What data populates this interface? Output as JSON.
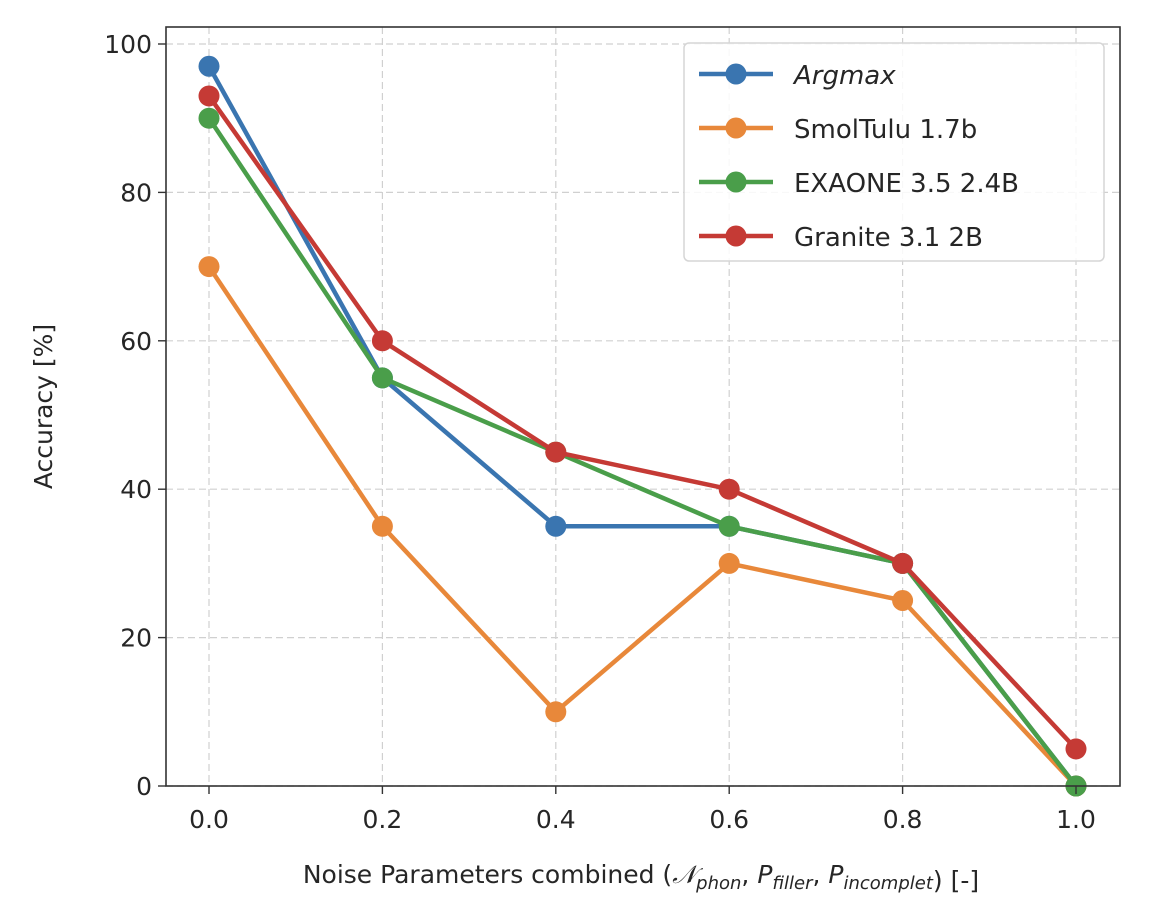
{
  "chart_data": {
    "type": "line",
    "title": "",
    "xlabel": {
      "prefix": "Noise Parameters combined (",
      "terms": [
        {
          "base": "𝒩",
          "sub": "phon"
        },
        {
          "base": "P",
          "sub": "filler"
        },
        {
          "base": "P",
          "sub": "incomplet"
        }
      ],
      "suffix": ") [-]",
      "full": "Noise Parameters combined (𝒩phon, Pfiller, Pincomplet) [-]"
    },
    "ylabel": "Accuracy [%]",
    "x": [
      0.0,
      0.2,
      0.4,
      0.6,
      0.8,
      1.0
    ],
    "xticks": [
      "0.0",
      "0.2",
      "0.4",
      "0.6",
      "0.8",
      "1.0"
    ],
    "yticks": [
      "0",
      "20",
      "40",
      "60",
      "80",
      "100"
    ],
    "ytick_values": [
      0,
      20,
      40,
      60,
      80,
      100
    ],
    "xlim": [
      -0.05,
      1.05
    ],
    "ylim": [
      0,
      102.5
    ],
    "grid": true,
    "legend_position": "top-right",
    "series": [
      {
        "name": "Argmax",
        "italic": true,
        "color": "#3a75b0",
        "values": [
          97,
          55,
          35,
          35,
          30,
          0
        ]
      },
      {
        "name": "SmolTulu 1.7b",
        "italic": false,
        "color": "#e8883a",
        "values": [
          70,
          35,
          10,
          30,
          25,
          0
        ]
      },
      {
        "name": "EXAONE 3.5 2.4B",
        "italic": false,
        "color": "#4a9e4a",
        "values": [
          90,
          55,
          45,
          35,
          30,
          0
        ]
      },
      {
        "name": "Granite 3.1 2B",
        "italic": false,
        "color": "#c53a35",
        "values": [
          93,
          60,
          45,
          40,
          30,
          5
        ]
      }
    ]
  }
}
